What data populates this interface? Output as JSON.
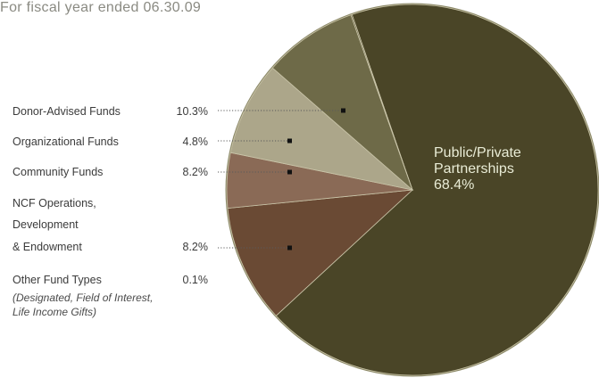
{
  "header": {
    "title": "For fiscal year ended 06.30.09"
  },
  "chart_data": {
    "type": "pie",
    "title": "For fiscal year ended 06.30.09",
    "slices": [
      {
        "label": "Public/Private Partnerships",
        "label_lines": [
          "Public/Private",
          "Partnerships"
        ],
        "value": 68.4,
        "value_label": "68.4%",
        "color": "#4a4527"
      },
      {
        "label": "Donor-Advised Funds",
        "value": 10.3,
        "value_label": "10.3%",
        "color": "#6a4a34"
      },
      {
        "label": "Organizational Funds",
        "value": 4.8,
        "value_label": "4.8%",
        "color": "#8a6a56"
      },
      {
        "label": "Community Funds",
        "value": 8.2,
        "value_label": "8.2%",
        "color": "#aca68a"
      },
      {
        "label": "NCF Operations, Development & Endowment",
        "label_lines": [
          "NCF Operations,",
          "Development",
          "& Endowment"
        ],
        "value": 8.2,
        "value_label": "8.2%",
        "color": "#6e6a48"
      },
      {
        "label": "Other Fund Types",
        "value": 0.1,
        "value_label": "0.1%",
        "color": "#4a4527",
        "note_lines": [
          "(Designated, Field of Interest,",
          "Life Income Gifts)"
        ]
      }
    ]
  }
}
